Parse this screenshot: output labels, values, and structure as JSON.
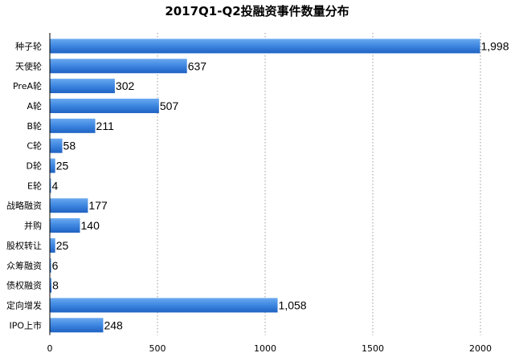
{
  "chart_data": {
    "type": "bar",
    "orientation": "horizontal",
    "title": "2017Q1-Q2投融资事件数量分布",
    "categories": [
      "种子轮",
      "天使轮",
      "PreA轮",
      "A轮",
      "B轮",
      "C轮",
      "D轮",
      "E轮",
      "战略融资",
      "并购",
      "股权转让",
      "众筹融资",
      "债权融资",
      "定向增发",
      "IPO上市"
    ],
    "values": [
      1998,
      637,
      302,
      507,
      211,
      58,
      25,
      4,
      177,
      140,
      25,
      6,
      8,
      1058,
      248
    ],
    "value_labels": [
      "1,998",
      "637",
      "302",
      "507",
      "211",
      "58",
      "25",
      "4",
      "177",
      "140",
      "25",
      "6",
      "8",
      "1,058",
      "248"
    ],
    "xlim": [
      0,
      2000
    ],
    "xticks": [
      0,
      500,
      1000,
      1500,
      2000
    ],
    "xtick_labels": [
      "0",
      "500",
      "1000",
      "1500",
      "2000"
    ],
    "grid": "vertical dotted",
    "bar_color": "#3d86e0",
    "bar_color_light": "#6aa9f0",
    "bar_color_dark": "#1f62c2"
  }
}
